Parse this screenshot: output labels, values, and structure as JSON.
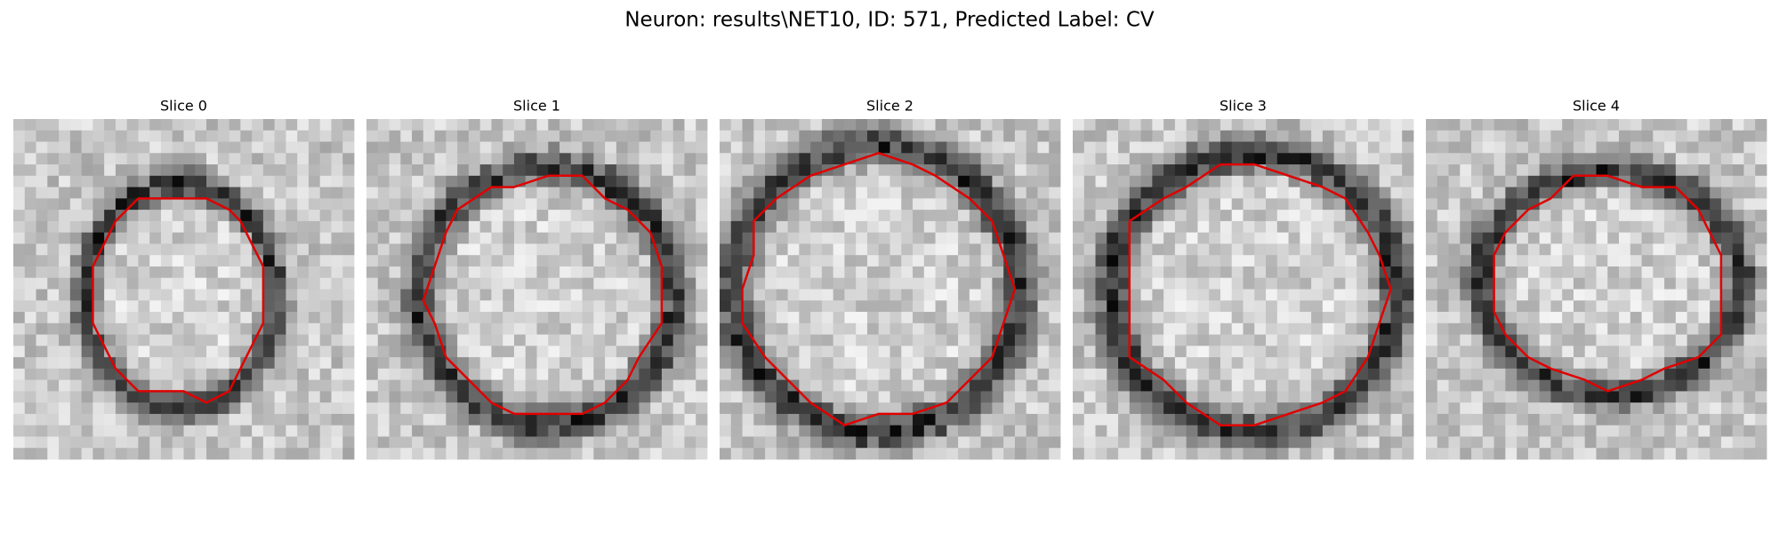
{
  "title": "Neuron: results\\NET10, ID: 571, Predicted Label: CV",
  "panels": [
    {
      "title": "Slice 0"
    },
    {
      "title": "Slice 1"
    },
    {
      "title": "Slice 2"
    },
    {
      "title": "Slice 3"
    },
    {
      "title": "Slice 4"
    }
  ]
}
